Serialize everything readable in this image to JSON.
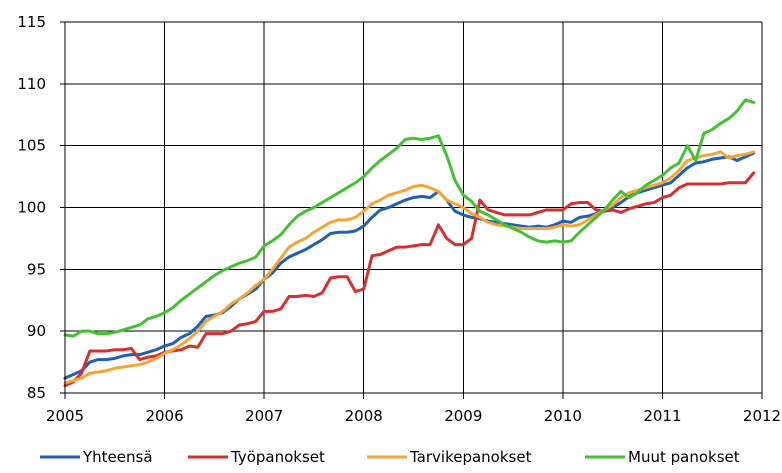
{
  "chart_data": {
    "type": "line",
    "title": "",
    "xlabel": "",
    "ylabel": "",
    "xlim": [
      2005,
      2012
    ],
    "ylim": [
      85,
      115
    ],
    "x_ticks": [
      "2005",
      "2006",
      "2007",
      "2008",
      "2009",
      "2010",
      "2011",
      "2012"
    ],
    "y_ticks": [
      "85",
      "90",
      "95",
      "100",
      "105",
      "110",
      "115"
    ],
    "grid": true,
    "legend_position": "bottom",
    "x": [
      2005.0,
      2005.0833,
      2005.1667,
      2005.25,
      2005.3333,
      2005.4167,
      2005.5,
      2005.5833,
      2005.6667,
      2005.75,
      2005.8333,
      2005.9167,
      2006.0,
      2006.0833,
      2006.1667,
      2006.25,
      2006.3333,
      2006.4167,
      2006.5,
      2006.5833,
      2006.6667,
      2006.75,
      2006.8333,
      2006.9167,
      2007.0,
      2007.0833,
      2007.1667,
      2007.25,
      2007.3333,
      2007.4167,
      2007.5,
      2007.5833,
      2007.6667,
      2007.75,
      2007.8333,
      2007.9167,
      2008.0,
      2008.0833,
      2008.1667,
      2008.25,
      2008.3333,
      2008.4167,
      2008.5,
      2008.5833,
      2008.6667,
      2008.75,
      2008.8333,
      2008.9167,
      2009.0,
      2009.0833,
      2009.1667,
      2009.25,
      2009.3333,
      2009.4167,
      2009.5,
      2009.5833,
      2009.6667,
      2009.75,
      2009.8333,
      2009.9167,
      2010.0,
      2010.0833,
      2010.1667,
      2010.25,
      2010.3333,
      2010.4167,
      2010.5,
      2010.5833,
      2010.6667,
      2010.75,
      2010.8333,
      2010.9167,
      2011.0,
      2011.0833,
      2011.1667,
      2011.25,
      2011.3333,
      2011.4167,
      2011.5,
      2011.5833,
      2011.6667,
      2011.75,
      2011.8333,
      2011.9167
    ],
    "series": [
      {
        "name": "Yhteensä",
        "color": "#1f5fb5",
        "values": [
          86.2,
          86.5,
          86.8,
          87.5,
          87.7,
          87.7,
          87.8,
          88.0,
          88.1,
          88.1,
          88.3,
          88.5,
          88.8,
          89.0,
          89.5,
          89.8,
          90.4,
          91.2,
          91.3,
          91.5,
          92.0,
          92.6,
          93.0,
          93.4,
          94.2,
          94.7,
          95.5,
          96.0,
          96.3,
          96.6,
          97.0,
          97.4,
          97.9,
          98.0,
          98.0,
          98.1,
          98.5,
          99.2,
          99.8,
          100.0,
          100.3,
          100.6,
          100.8,
          100.9,
          100.8,
          101.3,
          100.6,
          99.7,
          99.4,
          99.2,
          99.1,
          98.9,
          98.8,
          98.7,
          98.6,
          98.5,
          98.4,
          98.5,
          98.4,
          98.6,
          98.9,
          98.8,
          99.2,
          99.3,
          99.5,
          99.7,
          100.0,
          100.4,
          100.9,
          101.2,
          101.4,
          101.6,
          101.8,
          102.0,
          102.6,
          103.2,
          103.6,
          103.7,
          103.9,
          104.0,
          104.1,
          103.8,
          104.1,
          104.4
        ]
      },
      {
        "name": "Työpanokset",
        "color": "#d62f2f",
        "values": [
          85.6,
          85.9,
          86.6,
          88.4,
          88.4,
          88.4,
          88.5,
          88.5,
          88.6,
          87.7,
          87.9,
          88.0,
          88.3,
          88.4,
          88.5,
          88.8,
          88.7,
          89.8,
          89.8,
          89.8,
          90.0,
          90.5,
          90.6,
          90.8,
          91.6,
          91.6,
          91.8,
          92.8,
          92.8,
          92.9,
          92.8,
          93.1,
          94.3,
          94.4,
          94.4,
          93.2,
          93.4,
          96.1,
          96.2,
          96.5,
          96.8,
          96.8,
          96.9,
          97.0,
          97.0,
          98.6,
          97.5,
          97.0,
          97.0,
          97.5,
          100.6,
          99.8,
          99.6,
          99.4,
          99.4,
          99.4,
          99.4,
          99.6,
          99.8,
          99.8,
          99.8,
          100.3,
          100.4,
          100.4,
          99.8,
          99.7,
          99.8,
          99.6,
          99.9,
          100.1,
          100.3,
          100.4,
          100.8,
          101.0,
          101.6,
          101.9,
          101.9,
          101.9,
          101.9,
          101.9,
          102.0,
          102.0,
          102.0,
          102.8
        ]
      },
      {
        "name": "Tarvikepanokset",
        "color": "#f5a535",
        "values": [
          85.8,
          86.0,
          86.2,
          86.6,
          86.7,
          86.8,
          87.0,
          87.1,
          87.2,
          87.3,
          87.5,
          87.8,
          88.2,
          88.5,
          88.9,
          89.4,
          90.0,
          90.8,
          91.2,
          91.6,
          92.2,
          92.6,
          93.1,
          93.7,
          94.2,
          95.0,
          95.9,
          96.8,
          97.2,
          97.5,
          98.0,
          98.4,
          98.8,
          99.0,
          99.0,
          99.2,
          99.7,
          100.3,
          100.6,
          101.0,
          101.2,
          101.4,
          101.7,
          101.8,
          101.6,
          101.3,
          100.6,
          100.3,
          100.0,
          99.5,
          99.2,
          98.8,
          98.6,
          98.5,
          98.4,
          98.3,
          98.3,
          98.3,
          98.3,
          98.4,
          98.6,
          98.5,
          98.6,
          99.0,
          99.4,
          99.8,
          100.2,
          100.8,
          101.2,
          101.4,
          101.6,
          101.8,
          102.0,
          102.4,
          103.0,
          103.8,
          104.0,
          104.2,
          104.3,
          104.5,
          104.0,
          104.2,
          104.3,
          104.5
        ]
      },
      {
        "name": "Muut panokset",
        "color": "#44c033",
        "values": [
          89.7,
          89.6,
          90.0,
          90.0,
          89.8,
          89.8,
          89.9,
          90.1,
          90.3,
          90.5,
          91.0,
          91.2,
          91.5,
          91.9,
          92.5,
          93.0,
          93.5,
          94.0,
          94.5,
          94.9,
          95.2,
          95.5,
          95.7,
          96.0,
          96.9,
          97.3,
          97.8,
          98.6,
          99.3,
          99.7,
          100.0,
          100.4,
          100.8,
          101.2,
          101.6,
          102.0,
          102.5,
          103.2,
          103.8,
          104.3,
          104.8,
          105.5,
          105.6,
          105.5,
          105.6,
          105.8,
          104.2,
          102.2,
          101.0,
          100.5,
          99.7,
          99.4,
          99.0,
          98.6,
          98.3,
          98.0,
          97.6,
          97.3,
          97.2,
          97.3,
          97.2,
          97.3,
          98.0,
          98.6,
          99.2,
          99.8,
          100.6,
          101.3,
          100.8,
          101.2,
          101.8,
          102.2,
          102.6,
          103.2,
          103.6,
          105.0,
          103.8,
          106.0,
          106.3,
          106.8,
          107.2,
          107.8,
          108.7,
          108.5
        ]
      }
    ]
  }
}
